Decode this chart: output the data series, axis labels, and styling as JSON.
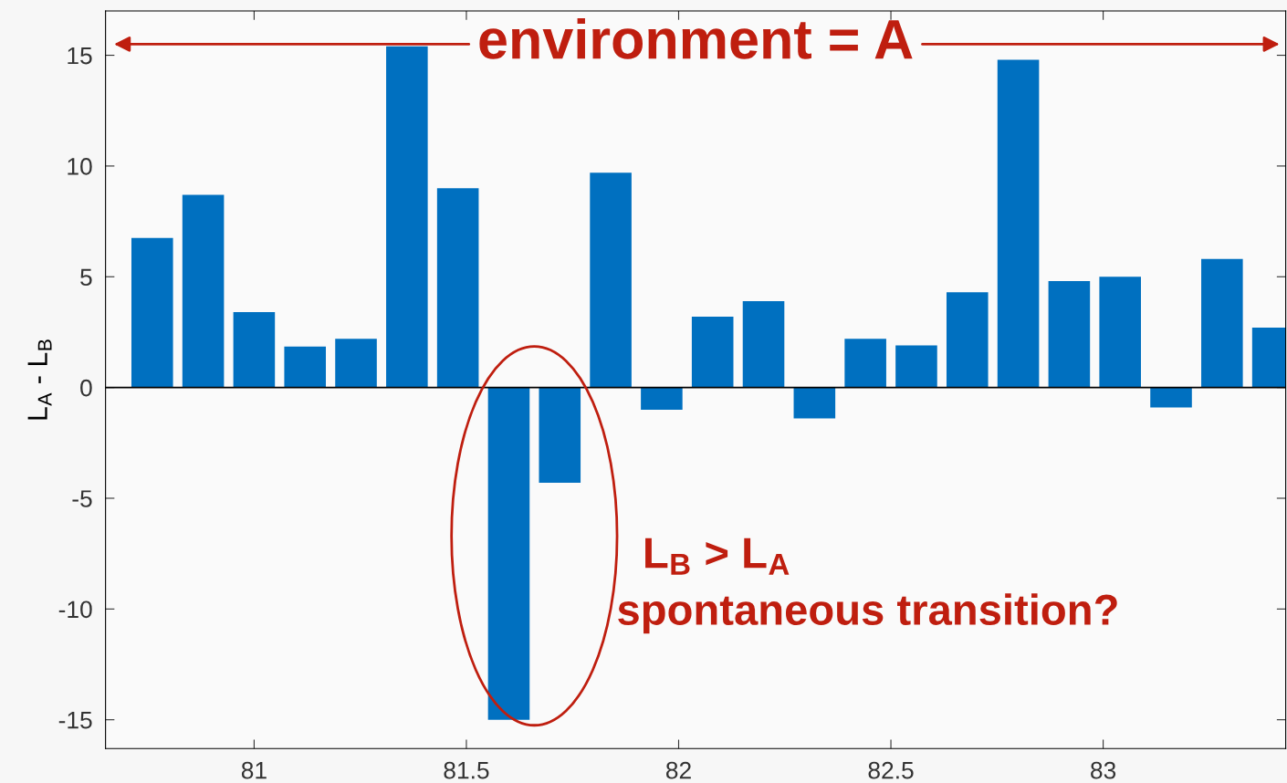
{
  "chart_data": {
    "type": "bar",
    "title": "environment = A",
    "ylabel": "L$_{A}$ - L$_{B}$",
    "x": [
      80.76,
      80.88,
      81.0,
      81.12,
      81.24,
      81.36,
      81.48,
      81.6,
      81.72,
      81.84,
      81.96,
      82.08,
      82.2,
      82.32,
      82.44,
      82.56,
      82.68,
      82.8,
      82.92,
      83.04,
      83.16,
      83.28,
      83.4
    ],
    "values": [
      6.75,
      8.7,
      3.4,
      1.85,
      2.2,
      15.4,
      9.0,
      -15.0,
      -4.3,
      9.7,
      -1.0,
      3.2,
      3.9,
      -1.4,
      2.2,
      1.9,
      4.3,
      14.8,
      4.8,
      5.0,
      -0.9,
      5.8,
      2.7
    ],
    "color": "#0070c0",
    "xlim": [
      80.65,
      83.43
    ],
    "ylim": [
      -16.3,
      17
    ],
    "xticks": [
      81,
      81.5,
      82,
      82.5,
      83
    ],
    "yticks": [
      -15,
      -10,
      -5,
      0,
      5,
      10,
      15
    ],
    "annotations": [
      "L$_{B}$ > L$_{A}$",
      "spontaneous transition?"
    ],
    "legend": false
  }
}
